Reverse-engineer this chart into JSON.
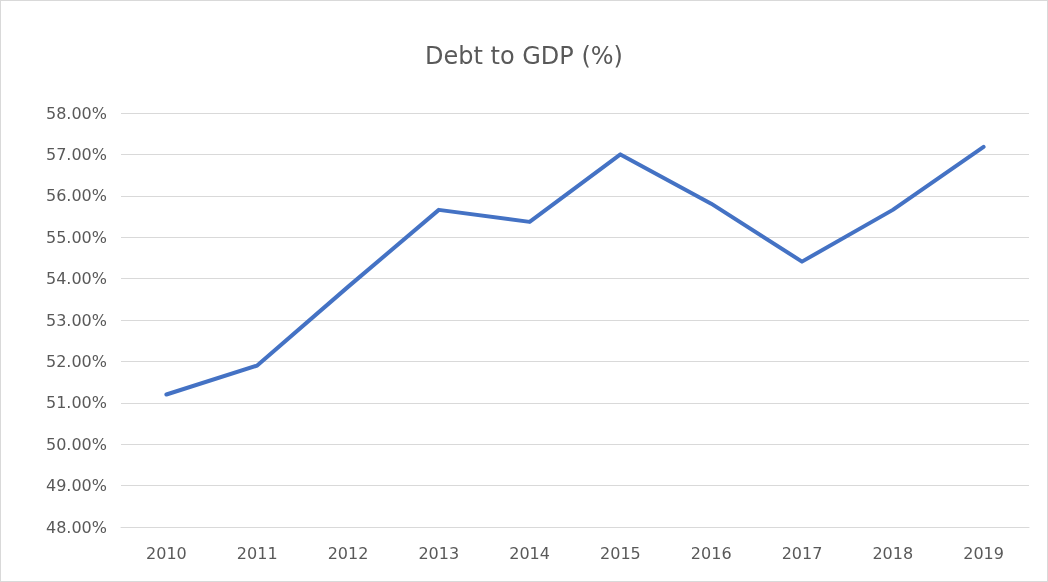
{
  "chart_data": {
    "type": "line",
    "title": "Debt to GDP (%)",
    "categories": [
      "2010",
      "2011",
      "2012",
      "2013",
      "2014",
      "2015",
      "2016",
      "2017",
      "2018",
      "2019"
    ],
    "series": [
      {
        "color": "#4472c4",
        "values": [
          51.2,
          51.9,
          53.8,
          55.66,
          55.37,
          57.0,
          55.81,
          54.41,
          55.66,
          57.18
        ]
      }
    ],
    "ylim": [
      48,
      58
    ],
    "yticks": [
      {
        "value": 48,
        "label": "48.00%"
      },
      {
        "value": 49,
        "label": "49.00%"
      },
      {
        "value": 50,
        "label": "50.00%"
      },
      {
        "value": 51,
        "label": "51.00%"
      },
      {
        "value": 52,
        "label": "52.00%"
      },
      {
        "value": 53,
        "label": "53.00%"
      },
      {
        "value": 54,
        "label": "54.00%"
      },
      {
        "value": 55,
        "label": "55.00%"
      },
      {
        "value": 56,
        "label": "56.00%"
      },
      {
        "value": 57,
        "label": "57.00%"
      },
      {
        "value": 58,
        "label": "58.00%"
      }
    ],
    "grid": "y",
    "marker": "none",
    "line_style": "solid"
  }
}
